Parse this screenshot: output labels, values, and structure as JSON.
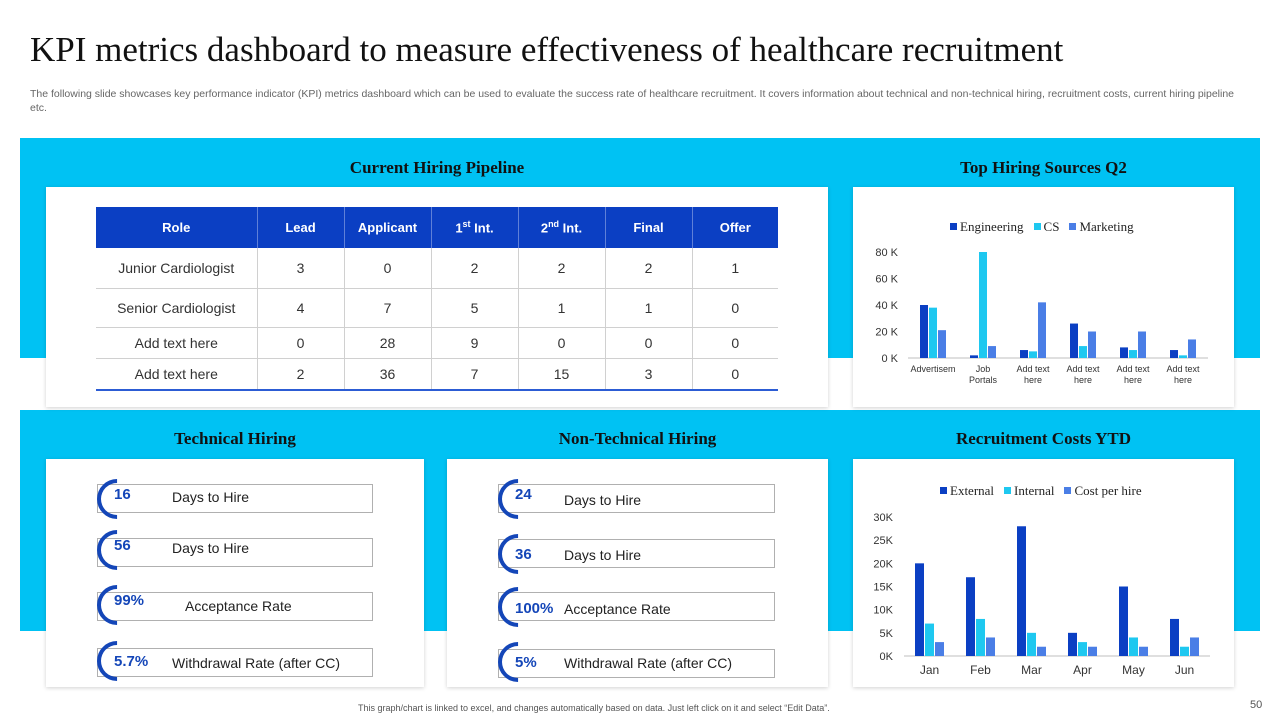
{
  "page": {
    "title": "KPI metrics dashboard to measure effectiveness of healthcare recruitment",
    "subtitle": "The following slide showcases key performance indicator (KPI) metrics dashboard which can be used to evaluate the success rate of healthcare recruitment. It covers information about technical and non-technical hiring, recruitment costs, current hiring pipeline etc.",
    "footer": "This graph/chart is linked to excel, and changes automatically based on data. Just left click on it and select “Edit Data”.",
    "page_number": "50"
  },
  "colors": {
    "band": "#00c2f3",
    "table_header": "#0b3fc3",
    "engineering": "#0b3fc3",
    "cs": "#1ec8f0",
    "marketing": "#4a7ee6"
  },
  "pipeline": {
    "title": "Current Hiring Pipeline",
    "headers": [
      "Role",
      "Lead",
      "Applicant",
      "1st Int.",
      "2nd Int.",
      "Final",
      "Offer"
    ],
    "rows": [
      [
        "Junior Cardiologist",
        "3",
        "0",
        "2",
        "2",
        "2",
        "1"
      ],
      [
        "Senior Cardiologist",
        "4",
        "7",
        "5",
        "1",
        "1",
        "0"
      ],
      [
        "Add text here",
        "0",
        "28",
        "9",
        "0",
        "0",
        "0"
      ],
      [
        "Add text here",
        "2",
        "36",
        "7",
        "15",
        "3",
        "0"
      ]
    ]
  },
  "technical": {
    "title": "Technical Hiring",
    "items": [
      {
        "value": "16",
        "label": "Days to Hire"
      },
      {
        "value": "56",
        "label": "Days to Hire"
      },
      {
        "value": "99%",
        "label": "Acceptance Rate"
      },
      {
        "value": "5.7%",
        "label": "Withdrawal Rate (after CC)"
      }
    ]
  },
  "non_technical": {
    "title": "Non-Technical Hiring",
    "items": [
      {
        "value": "24",
        "label": "Days to Hire"
      },
      {
        "value": "36",
        "label": "Days to Hire"
      },
      {
        "value": "100%",
        "label": "Acceptance Rate"
      },
      {
        "value": "5%",
        "label": "Withdrawal Rate (after CC)"
      }
    ]
  },
  "chart_data": [
    {
      "type": "bar",
      "title": "Top Hiring Sources Q2",
      "categories": [
        "Advertisem",
        "Job Portals",
        "Add text here",
        "Add text here",
        "Add text here",
        "Add text here"
      ],
      "series": [
        {
          "name": "Engineering",
          "values": [
            40000,
            2000,
            6000,
            26000,
            8000,
            6000
          ]
        },
        {
          "name": "CS",
          "values": [
            38000,
            80000,
            5000,
            9000,
            6000,
            2000
          ]
        },
        {
          "name": "Marketing",
          "values": [
            21000,
            9000,
            42000,
            20000,
            20000,
            14000
          ]
        }
      ],
      "y_ticks": [
        "0 K",
        "20 K",
        "40 K",
        "60 K",
        "80 K"
      ],
      "ylim": [
        0,
        80000
      ],
      "legend": "top"
    },
    {
      "type": "bar",
      "title": "Recruitment Costs YTD",
      "categories": [
        "Jan",
        "Feb",
        "Mar",
        "Apr",
        "May",
        "Jun"
      ],
      "series": [
        {
          "name": "External",
          "values": [
            20000,
            17000,
            28000,
            5000,
            15000,
            8000
          ]
        },
        {
          "name": "Internal",
          "values": [
            7000,
            8000,
            5000,
            3000,
            4000,
            2000
          ]
        },
        {
          "name": "Cost per hire",
          "values": [
            3000,
            4000,
            2000,
            2000,
            2000,
            4000
          ]
        }
      ],
      "y_ticks": [
        "0K",
        "5K",
        "10K",
        "15K",
        "20K",
        "25K",
        "30K"
      ],
      "ylim": [
        0,
        30000
      ],
      "legend": "top"
    }
  ]
}
